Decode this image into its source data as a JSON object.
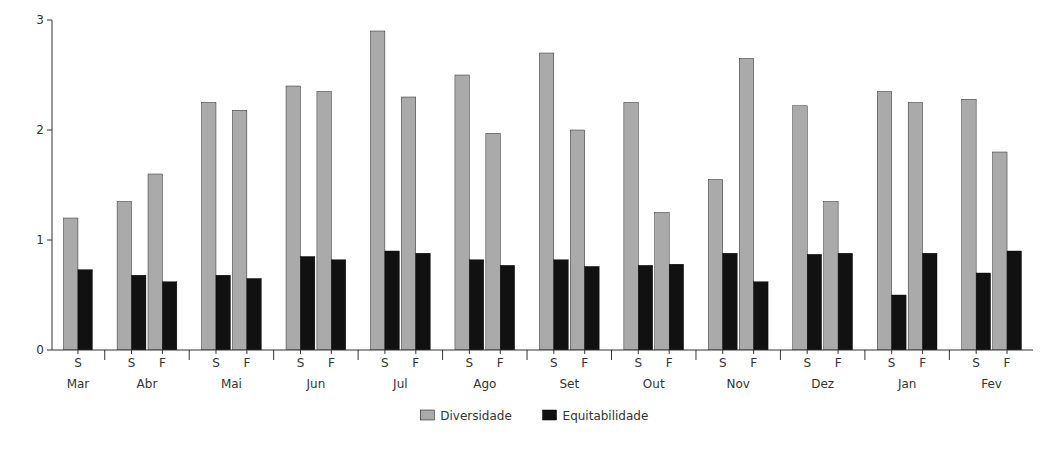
{
  "chart_data": {
    "type": "bar",
    "categories": [
      "S",
      "S",
      "F",
      "S",
      "F",
      "S",
      "F",
      "S",
      "F",
      "S",
      "F",
      "S",
      "F",
      "S",
      "F",
      "S",
      "F",
      "S",
      "F",
      "S",
      "F",
      "S",
      "F"
    ],
    "category_groups": [
      {
        "name": "Mar",
        "count": 1
      },
      {
        "name": "Abr",
        "count": 2
      },
      {
        "name": "Mai",
        "count": 2
      },
      {
        "name": "Jun",
        "count": 2
      },
      {
        "name": "Jul",
        "count": 2
      },
      {
        "name": "Ago",
        "count": 2
      },
      {
        "name": "Set",
        "count": 2
      },
      {
        "name": "Out",
        "count": 2
      },
      {
        "name": "Nov",
        "count": 2
      },
      {
        "name": "Dez",
        "count": 2
      },
      {
        "name": "Jan",
        "count": 2
      },
      {
        "name": "Fev",
        "count": 2
      }
    ],
    "series": [
      {
        "name": "Diversidade",
        "color": "#aaaaaa",
        "values": [
          1.2,
          1.35,
          1.6,
          2.25,
          2.18,
          2.4,
          2.35,
          2.9,
          2.3,
          2.5,
          1.97,
          2.7,
          2.0,
          2.25,
          1.25,
          1.55,
          2.65,
          2.22,
          1.35,
          2.35,
          2.25,
          2.28,
          1.8
        ]
      },
      {
        "name": "Equitabilidade",
        "color": "#111111",
        "values": [
          0.73,
          0.68,
          0.62,
          0.68,
          0.65,
          0.85,
          0.82,
          0.9,
          0.88,
          0.82,
          0.77,
          0.82,
          0.76,
          0.77,
          0.78,
          0.88,
          0.62,
          0.87,
          0.88,
          0.5,
          0.88,
          0.7,
          0.9
        ]
      }
    ],
    "ylim": [
      0,
      3
    ],
    "yticks": [
      0,
      1,
      2,
      3
    ],
    "grid": false,
    "legend": "bottom"
  }
}
